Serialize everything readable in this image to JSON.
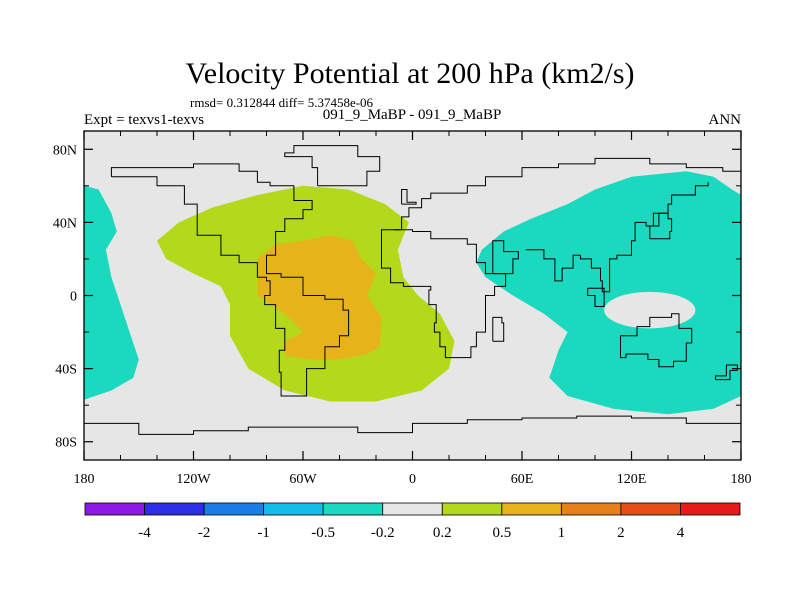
{
  "chart_data": {
    "type": "heatmap",
    "title": "Velocity Potential at 200 hPa (km2/s)",
    "stats": "rmsd= 0.312844  diff= 5.37458e-06",
    "left_label": "Expt = texvs1-texvs",
    "center_label": "091_9_MaBP - 091_9_MaBP",
    "right_label": "ANN",
    "x_range": [
      -180,
      180
    ],
    "y_range": [
      -90,
      90
    ],
    "x_ticks": [
      {
        "value": -180,
        "label": "180"
      },
      {
        "value": -120,
        "label": "120W"
      },
      {
        "value": -60,
        "label": "60W"
      },
      {
        "value": 0,
        "label": "0"
      },
      {
        "value": 60,
        "label": "60E"
      },
      {
        "value": 120,
        "label": "120E"
      },
      {
        "value": 180,
        "label": "180"
      }
    ],
    "y_ticks": [
      {
        "value": 80,
        "label": "80N"
      },
      {
        "value": 40,
        "label": "40N"
      },
      {
        "value": 0,
        "label": "0"
      },
      {
        "value": -40,
        "label": "40S"
      },
      {
        "value": -80,
        "label": "80S"
      }
    ],
    "colorbar": {
      "colors": [
        "#8b1ae6",
        "#2e2ee6",
        "#1a7ee6",
        "#12bee6",
        "#1ad9bf",
        "#e6e6e6",
        "#b3d91a",
        "#e6b31a",
        "#e6801a",
        "#e64d1a",
        "#e61a1a"
      ],
      "boundaries": [
        -4,
        -2,
        -1,
        -0.5,
        -0.2,
        0.2,
        0.5,
        1,
        2,
        4
      ],
      "labels": [
        "-4",
        "-2",
        "-1",
        "-0.5",
        "-0.2",
        "0.2",
        "0.5",
        "1",
        "2",
        "4"
      ]
    },
    "regions": [
      {
        "name": "positive-0.2-0.5",
        "color": "#b3d91a",
        "points": [
          [
            -140,
            30
          ],
          [
            -128,
            40
          ],
          [
            -110,
            48
          ],
          [
            -85,
            55
          ],
          [
            -60,
            60
          ],
          [
            -35,
            58
          ],
          [
            -15,
            50
          ],
          [
            -2,
            40
          ],
          [
            -8,
            25
          ],
          [
            -5,
            10
          ],
          [
            3,
            0
          ],
          [
            15,
            -10
          ],
          [
            23,
            -25
          ],
          [
            20,
            -40
          ],
          [
            5,
            -52
          ],
          [
            -20,
            -58
          ],
          [
            -45,
            -58
          ],
          [
            -70,
            -52
          ],
          [
            -90,
            -40
          ],
          [
            -100,
            -22
          ],
          [
            -100,
            -5
          ],
          [
            -105,
            5
          ],
          [
            -120,
            12
          ],
          [
            -135,
            20
          ],
          [
            -140,
            30
          ]
        ]
      },
      {
        "name": "positive-0.5-1",
        "color": "#e6b31a",
        "points": [
          [
            -85,
            20
          ],
          [
            -75,
            28
          ],
          [
            -60,
            30
          ],
          [
            -45,
            33
          ],
          [
            -33,
            30
          ],
          [
            -28,
            20
          ],
          [
            -20,
            12
          ],
          [
            -25,
            0
          ],
          [
            -17,
            -12
          ],
          [
            -18,
            -28
          ],
          [
            -25,
            -32
          ],
          [
            -40,
            -35
          ],
          [
            -55,
            -35
          ],
          [
            -70,
            -33
          ],
          [
            -70,
            -25
          ],
          [
            -60,
            -20
          ],
          [
            -70,
            -10
          ],
          [
            -85,
            0
          ],
          [
            -85,
            20
          ]
        ]
      },
      {
        "name": "negative-east",
        "color": "#1ad9bf",
        "points": [
          [
            38,
            25
          ],
          [
            50,
            35
          ],
          [
            65,
            42
          ],
          [
            85,
            50
          ],
          [
            100,
            58
          ],
          [
            120,
            65
          ],
          [
            150,
            68
          ],
          [
            165,
            65
          ],
          [
            175,
            58
          ],
          [
            180,
            55
          ],
          [
            180,
            -55
          ],
          [
            165,
            -62
          ],
          [
            140,
            -65
          ],
          [
            110,
            -62
          ],
          [
            85,
            -55
          ],
          [
            75,
            -45
          ],
          [
            80,
            -30
          ],
          [
            85,
            -20
          ],
          [
            72,
            -10
          ],
          [
            55,
            0
          ],
          [
            40,
            10
          ],
          [
            35,
            18
          ],
          [
            38,
            25
          ]
        ]
      },
      {
        "name": "negative-west",
        "color": "#1ad9bf",
        "points": [
          [
            -180,
            60
          ],
          [
            -172,
            58
          ],
          [
            -165,
            45
          ],
          [
            -162,
            35
          ],
          [
            -168,
            25
          ],
          [
            -165,
            10
          ],
          [
            -160,
            -5
          ],
          [
            -155,
            -20
          ],
          [
            -150,
            -35
          ],
          [
            -153,
            -45
          ],
          [
            -165,
            -52
          ],
          [
            -180,
            -57
          ],
          [
            -180,
            60
          ]
        ]
      }
    ],
    "islands": [
      {
        "name": "neutral-island",
        "color": "#e6e6e6",
        "cx": 130,
        "cy": -8,
        "rx": 25,
        "ry": 10
      }
    ],
    "coastlines": [
      [
        [
          -165,
          65
        ],
        [
          -140,
          60
        ],
        [
          -125,
          50
        ],
        [
          -118,
          33
        ],
        [
          -105,
          22
        ],
        [
          -95,
          18
        ],
        [
          -85,
          10
        ],
        [
          -80,
          8
        ],
        [
          -78,
          0
        ],
        [
          -81,
          -5
        ],
        [
          -75,
          -18
        ],
        [
          -70,
          -30
        ],
        [
          -73,
          -42
        ],
        [
          -72,
          -55
        ],
        [
          -65,
          -55
        ],
        [
          -58,
          -40
        ],
        [
          -48,
          -28
        ],
        [
          -40,
          -22
        ],
        [
          -35,
          -8
        ],
        [
          -38,
          -2
        ],
        [
          -48,
          0
        ],
        [
          -60,
          10
        ],
        [
          -72,
          12
        ],
        [
          -80,
          22
        ],
        [
          -75,
          35
        ],
        [
          -70,
          42
        ],
        [
          -60,
          47
        ],
        [
          -55,
          52
        ],
        [
          -65,
          60
        ],
        [
          -78,
          62
        ],
        [
          -85,
          68
        ],
        [
          -95,
          72
        ],
        [
          -120,
          70
        ],
        [
          -140,
          70
        ],
        [
          -165,
          68
        ],
        [
          -165,
          65
        ]
      ],
      [
        [
          -10,
          36
        ],
        [
          -6,
          43
        ],
        [
          -2,
          48
        ],
        [
          5,
          53
        ],
        [
          10,
          56
        ],
        [
          20,
          56
        ],
        [
          30,
          60
        ],
        [
          40,
          65
        ],
        [
          60,
          70
        ],
        [
          80,
          72
        ],
        [
          100,
          75
        ],
        [
          130,
          72
        ],
        [
          150,
          70
        ],
        [
          170,
          68
        ],
        [
          180,
          66
        ]
      ],
      [
        [
          -17,
          22
        ],
        [
          -17,
          15
        ],
        [
          -12,
          7
        ],
        [
          -5,
          5
        ],
        [
          5,
          5
        ],
        [
          10,
          3
        ],
        [
          9,
          -5
        ],
        [
          13,
          -15
        ],
        [
          12,
          -20
        ],
        [
          15,
          -28
        ],
        [
          18,
          -34
        ],
        [
          25,
          -34
        ],
        [
          32,
          -28
        ],
        [
          35,
          -20
        ],
        [
          40,
          -12
        ],
        [
          40,
          0
        ],
        [
          45,
          5
        ],
        [
          51,
          12
        ],
        [
          43,
          12
        ],
        [
          40,
          18
        ],
        [
          35,
          28
        ],
        [
          30,
          31
        ],
        [
          20,
          31
        ],
        [
          10,
          35
        ],
        [
          0,
          36
        ],
        [
          -10,
          36
        ],
        [
          -17,
          22
        ]
      ],
      [
        [
          44,
          12
        ],
        [
          55,
          20
        ],
        [
          58,
          24
        ],
        [
          50,
          30
        ],
        [
          48,
          30
        ],
        [
          44,
          25
        ],
        [
          44,
          12
        ]
      ],
      [
        [
          62,
          25
        ],
        [
          72,
          20
        ],
        [
          78,
          8
        ],
        [
          82,
          15
        ],
        [
          88,
          22
        ],
        [
          92,
          20
        ],
        [
          98,
          15
        ],
        [
          103,
          8
        ],
        [
          104,
          2
        ],
        [
          108,
          10
        ],
        [
          108,
          20
        ],
        [
          112,
          22
        ],
        [
          120,
          30
        ],
        [
          122,
          40
        ],
        [
          128,
          38
        ],
        [
          132,
          45
        ],
        [
          140,
          50
        ],
        [
          142,
          55
        ],
        [
          155,
          60
        ],
        [
          162,
          62
        ]
      ],
      [
        [
          114,
          -22
        ],
        [
          123,
          -17
        ],
        [
          130,
          -12
        ],
        [
          137,
          -12
        ],
        [
          142,
          -10
        ],
        [
          146,
          -18
        ],
        [
          153,
          -26
        ],
        [
          150,
          -36
        ],
        [
          143,
          -39
        ],
        [
          135,
          -35
        ],
        [
          129,
          -32
        ],
        [
          117,
          -34
        ],
        [
          114,
          -28
        ],
        [
          114,
          -22
        ]
      ],
      [
        [
          -180,
          -70
        ],
        [
          -150,
          -76
        ],
        [
          -120,
          -74
        ],
        [
          -90,
          -72
        ],
        [
          -60,
          -72
        ],
        [
          -30,
          -75
        ],
        [
          0,
          -70
        ],
        [
          30,
          -68
        ],
        [
          60,
          -67
        ],
        [
          90,
          -66
        ],
        [
          120,
          -67
        ],
        [
          150,
          -70
        ],
        [
          180,
          -70
        ]
      ],
      [
        [
          -52,
          60
        ],
        [
          -45,
          60
        ],
        [
          -25,
          68
        ],
        [
          -18,
          76
        ],
        [
          -30,
          82
        ],
        [
          -50,
          82
        ],
        [
          -65,
          78
        ],
        [
          -70,
          76
        ],
        [
          -55,
          70
        ],
        [
          -52,
          60
        ]
      ],
      [
        [
          96,
          4
        ],
        [
          105,
          -6
        ],
        [
          100,
          0
        ],
        [
          96,
          4
        ]
      ],
      [
        [
          130,
          31
        ],
        [
          141,
          35
        ],
        [
          142,
          42
        ],
        [
          140,
          45
        ],
        [
          135,
          38
        ],
        [
          130,
          31
        ]
      ],
      [
        [
          -6,
          50
        ],
        [
          2,
          51
        ],
        [
          -3,
          58
        ],
        [
          -6,
          50
        ]
      ],
      [
        [
          44,
          -25
        ],
        [
          50,
          -15
        ],
        [
          49,
          -12
        ],
        [
          44,
          -25
        ]
      ],
      [
        [
          166,
          -46
        ],
        [
          174,
          -41
        ],
        [
          178,
          -38
        ],
        [
          172,
          -44
        ],
        [
          166,
          -46
        ]
      ]
    ]
  }
}
